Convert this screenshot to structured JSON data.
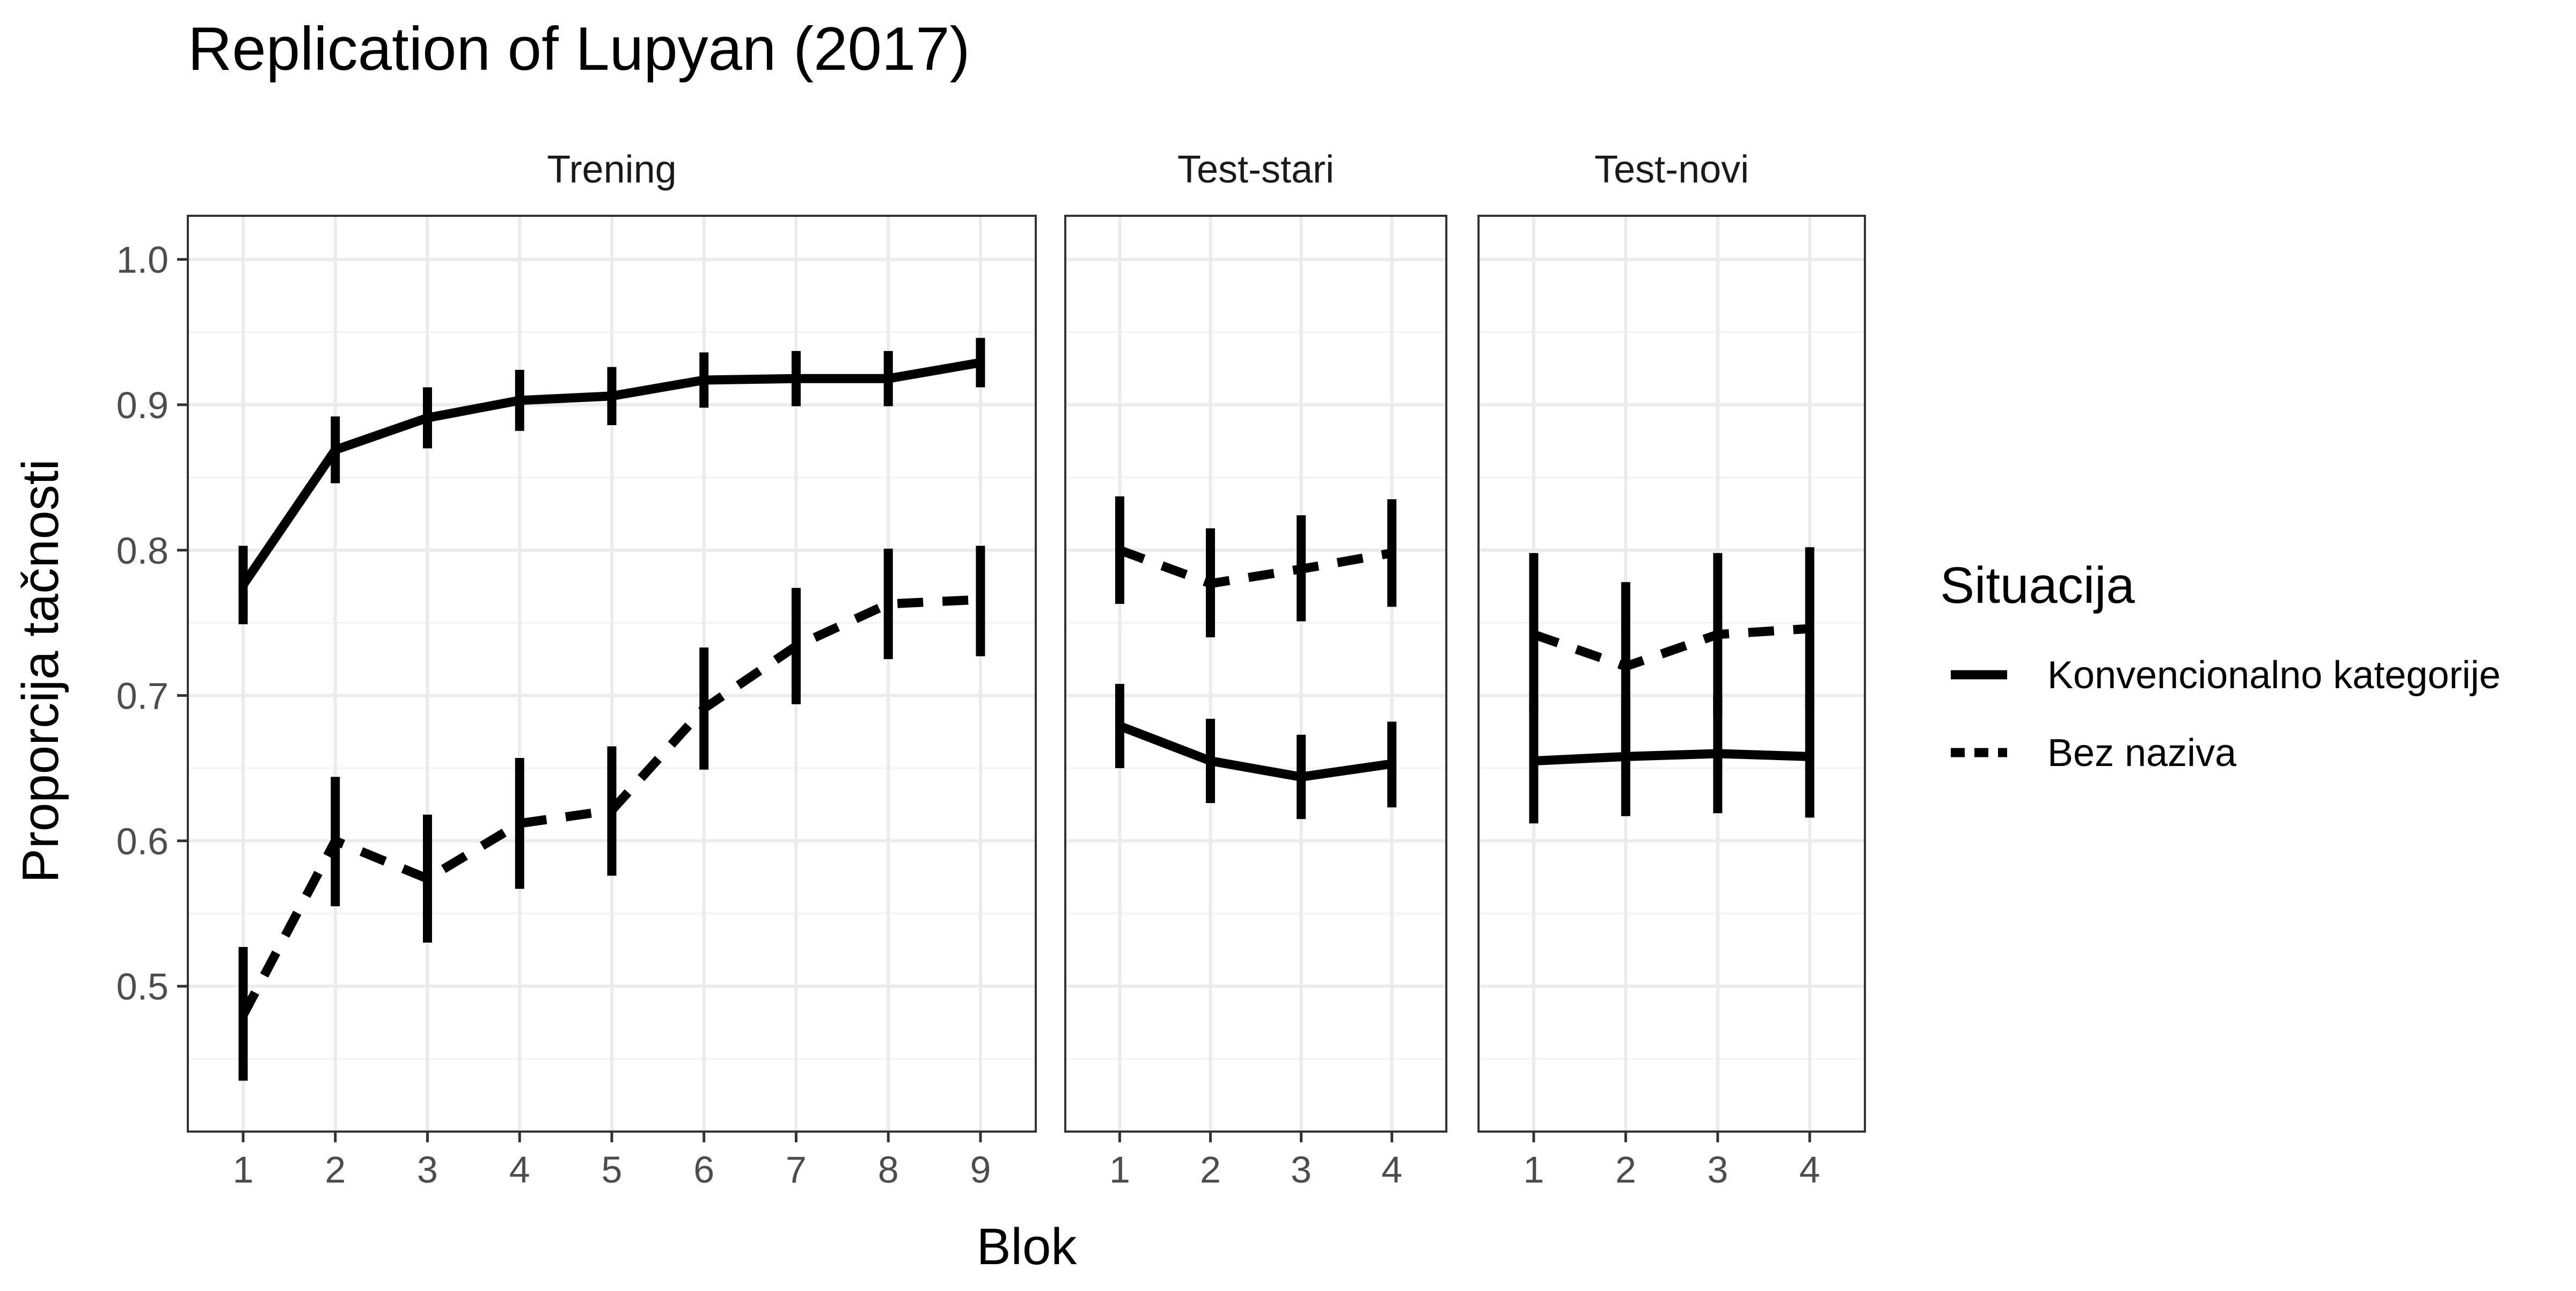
{
  "chart_data": {
    "type": "line",
    "title": "Replication of Lupyan (2017)",
    "xlabel": "Blok",
    "ylabel": "Proporcija tačnosti",
    "ylim": [
      0.4,
      1.03
    ],
    "y_ticks": [
      0.5,
      0.6,
      0.7,
      0.8,
      0.9,
      1.0
    ],
    "y_tick_labels": [
      "0.5",
      "0.6",
      "0.7",
      "0.8",
      "0.9",
      "1.0"
    ],
    "grid": true,
    "legend": {
      "title": "Situacija",
      "position": "right",
      "entries": [
        {
          "label": "Konvencionalno kategorije",
          "linetype": "solid"
        },
        {
          "label": "Bez naziva",
          "linetype": "dashed"
        }
      ]
    },
    "panels": [
      {
        "label": "Trening",
        "x": [
          1,
          2,
          3,
          4,
          5,
          6,
          7,
          8,
          9
        ],
        "series": [
          {
            "name": "Konvencionalno kategorije",
            "linetype": "solid",
            "y": [
              0.776,
              0.869,
              0.891,
              0.903,
              0.906,
              0.917,
              0.918,
              0.918,
              0.929
            ],
            "ymin": [
              0.749,
              0.846,
              0.87,
              0.882,
              0.886,
              0.898,
              0.899,
              0.899,
              0.912
            ],
            "ymax": [
              0.803,
              0.892,
              0.912,
              0.924,
              0.926,
              0.936,
              0.937,
              0.937,
              0.946
            ]
          },
          {
            "name": "Bez naziva",
            "linetype": "dashed",
            "y": [
              0.48,
              0.6,
              0.574,
              0.612,
              0.621,
              0.691,
              0.734,
              0.763,
              0.766
            ],
            "ymin": [
              0.435,
              0.555,
              0.53,
              0.567,
              0.576,
              0.649,
              0.694,
              0.725,
              0.727
            ],
            "ymax": [
              0.527,
              0.644,
              0.618,
              0.657,
              0.665,
              0.733,
              0.774,
              0.801,
              0.803
            ]
          }
        ]
      },
      {
        "label": "Test-stari",
        "x": [
          1,
          2,
          3,
          4
        ],
        "series": [
          {
            "name": "Konvencionalno kategorije",
            "linetype": "solid",
            "y": [
              0.679,
              0.655,
              0.644,
              0.653
            ],
            "ymin": [
              0.65,
              0.626,
              0.615,
              0.623
            ],
            "ymax": [
              0.708,
              0.684,
              0.673,
              0.682
            ]
          },
          {
            "name": "Bez naziva",
            "linetype": "dashed",
            "y": [
              0.8,
              0.777,
              0.787,
              0.798
            ],
            "ymin": [
              0.763,
              0.74,
              0.751,
              0.761
            ],
            "ymax": [
              0.837,
              0.815,
              0.824,
              0.835
            ]
          }
        ]
      },
      {
        "label": "Test-novi",
        "x": [
          1,
          2,
          3,
          4
        ],
        "series": [
          {
            "name": "Konvencionalno kategorije",
            "linetype": "solid",
            "y": [
              0.655,
              0.658,
              0.66,
              0.658
            ],
            "ymin": [
              0.612,
              0.617,
              0.619,
              0.616
            ],
            "ymax": [
              0.697,
              0.698,
              0.7,
              0.7
            ]
          },
          {
            "name": "Bez naziva",
            "linetype": "dashed",
            "y": [
              0.742,
              0.72,
              0.742,
              0.746
            ],
            "ymin": [
              0.688,
              0.662,
              0.686,
              0.69
            ],
            "ymax": [
              0.798,
              0.778,
              0.798,
              0.802
            ]
          }
        ]
      }
    ]
  }
}
